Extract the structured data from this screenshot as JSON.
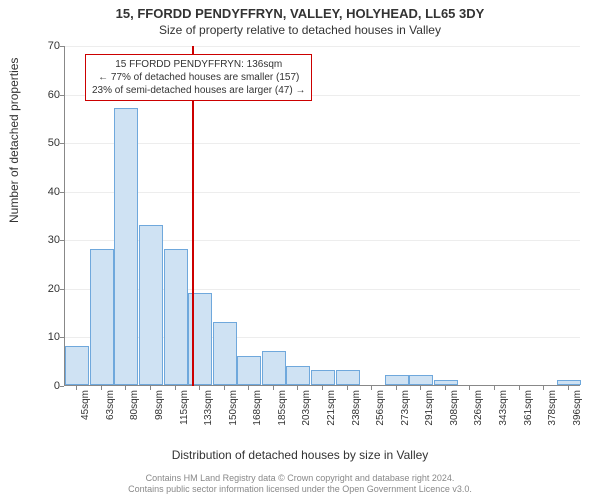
{
  "title": "15, FFORDD PENDYFFRYN, VALLEY, HOLYHEAD, LL65 3DY",
  "subtitle": "Size of property relative to detached houses in Valley",
  "ylabel": "Number of detached properties",
  "xlabel": "Distribution of detached houses by size in Valley",
  "footer1": "Contains HM Land Registry data © Crown copyright and database right 2024.",
  "footer2": "Contains public sector information licensed under the Open Government Licence v3.0.",
  "chart": {
    "type": "histogram",
    "ylim": [
      0,
      70
    ],
    "ytick_step": 10,
    "yticks": [
      0,
      10,
      20,
      30,
      40,
      50,
      60,
      70
    ],
    "bar_color": "#cfe2f3",
    "bar_border": "#6fa8dc",
    "grid_color": "#888888",
    "axis_color": "#888888",
    "marker_color": "#cc0000",
    "background_color": "#ffffff",
    "marker_value": 136,
    "categories": [
      "45sqm",
      "63sqm",
      "80sqm",
      "98sqm",
      "115sqm",
      "133sqm",
      "150sqm",
      "168sqm",
      "185sqm",
      "203sqm",
      "221sqm",
      "238sqm",
      "256sqm",
      "273sqm",
      "291sqm",
      "308sqm",
      "326sqm",
      "343sqm",
      "361sqm",
      "378sqm",
      "396sqm"
    ],
    "values": [
      8,
      28,
      57,
      33,
      28,
      19,
      13,
      6,
      7,
      4,
      3,
      3,
      0,
      2,
      2,
      1,
      0,
      0,
      0,
      0,
      1
    ]
  },
  "annotation": {
    "line1": "15 FFORDD PENDYFFRYN: 136sqm",
    "line2": "← 77% of detached houses are smaller (157)",
    "line3": "23% of semi-detached houses are larger (47) →"
  }
}
